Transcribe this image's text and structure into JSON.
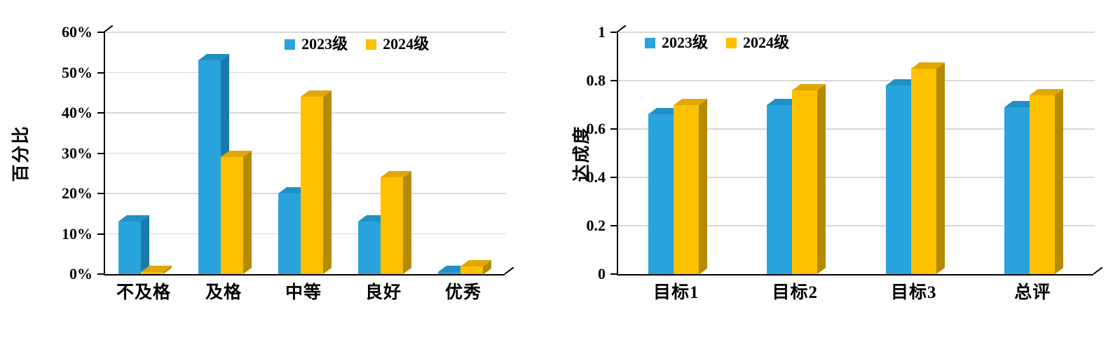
{
  "colors": {
    "background": "#ffffff",
    "grid": "#d9d9d9",
    "axis": "#000000",
    "text": "#000000",
    "series": [
      {
        "name": "2023级",
        "front": "#29a3dc",
        "side": "#1a7aab",
        "top": "#2090c4"
      },
      {
        "name": "2024级",
        "front": "#ffc000",
        "side": "#b68a00",
        "top": "#e0a800"
      }
    ]
  },
  "chart_data": [
    {
      "type": "bar",
      "title": "",
      "ylabel": "百分比",
      "categories": [
        "不及格",
        "及格",
        "中等",
        "良好",
        "优秀"
      ],
      "series": [
        {
          "name": "2023级",
          "values": [
            13,
            53,
            20,
            13,
            0.5
          ]
        },
        {
          "name": "2024级",
          "values": [
            0.5,
            29,
            44,
            24,
            2
          ]
        }
      ],
      "ylim": [
        0,
        60
      ],
      "ytick_step": 10,
      "yticks": [
        "0%",
        "10%",
        "20%",
        "30%",
        "40%",
        "50%",
        "60%"
      ],
      "legend_position": "top-center",
      "legend_entries": [
        "2023级",
        "2024级"
      ],
      "grid": true,
      "bar_style": "3d"
    },
    {
      "type": "bar",
      "title": "",
      "ylabel": "达成度",
      "categories": [
        "目标1",
        "目标2",
        "目标3",
        "总评"
      ],
      "series": [
        {
          "name": "2023级",
          "values": [
            0.66,
            0.7,
            0.78,
            0.69
          ]
        },
        {
          "name": "2024级",
          "values": [
            0.7,
            0.76,
            0.85,
            0.74
          ]
        }
      ],
      "ylim": [
        0,
        1
      ],
      "ytick_step": 0.2,
      "yticks": [
        "0",
        "0.2",
        "0.4",
        "0.6",
        "0.8",
        "1"
      ],
      "legend_position": "top-left",
      "legend_entries": [
        "2023级",
        "2024级"
      ],
      "grid": true,
      "bar_style": "3d"
    }
  ]
}
